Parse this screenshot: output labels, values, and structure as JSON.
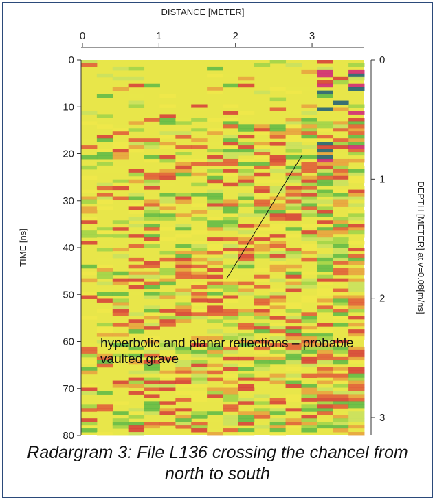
{
  "chart_data": {
    "type": "radargram",
    "x_label": "DISTANCE [METER]",
    "xlim": [
      0,
      3.7
    ],
    "xticks": [
      0,
      1,
      2,
      3
    ],
    "y_label": "TIME [ns]",
    "ylim": [
      0,
      80
    ],
    "yticks": [
      0,
      10,
      20,
      30,
      40,
      50,
      60,
      70,
      80
    ],
    "y2_label": "DEPTH [METER] at v=0.08[m/ns]",
    "y2lim": [
      0,
      3.15
    ],
    "y2ticks": [
      0,
      1,
      2,
      3
    ],
    "annotation": "hyperbolic and planar reflections – probable vaulted grave",
    "caption": "Radargram 3: File L136 crossing the chancel from north to south"
  }
}
